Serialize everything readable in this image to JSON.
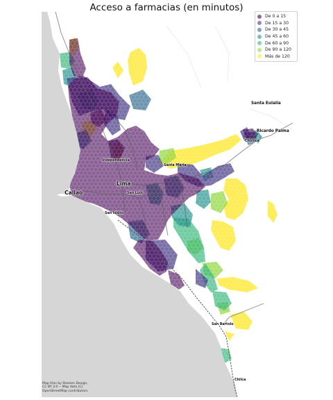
{
  "title": "Acceso a farmacias (en minutos)",
  "legend": [
    {
      "label": "De 0 a 15",
      "color": "#440154"
    },
    {
      "label": "De 15 a 30",
      "color": "#443983"
    },
    {
      "label": "De 30 a 45",
      "color": "#31688e"
    },
    {
      "label": "De 45 a 60",
      "color": "#21918c"
    },
    {
      "label": "De 60 a 90",
      "color": "#35b779"
    },
    {
      "label": "De 90 a 120",
      "color": "#90d743"
    },
    {
      "label": "Más de 120",
      "color": "#fde725"
    }
  ],
  "places": {
    "santa_eulalia": "Santa Eulalia",
    "ricardo_palma": "Ricardo Palma",
    "chosica": "Chosica",
    "independencia": "Independencia",
    "santa_maria": "Santa María",
    "lima": "Lima",
    "callao": "Callao",
    "san_luis": "San Luis",
    "san_isidro": "San Isidro",
    "san_bartolo": "San Bartolo",
    "chilca": "Chilca"
  },
  "attribution": {
    "line1": "Map tiles by Stamen Design,",
    "line2": "CC BY 3.0 -- Map data (C)",
    "line3": "OpenStreetMap contributors"
  }
}
